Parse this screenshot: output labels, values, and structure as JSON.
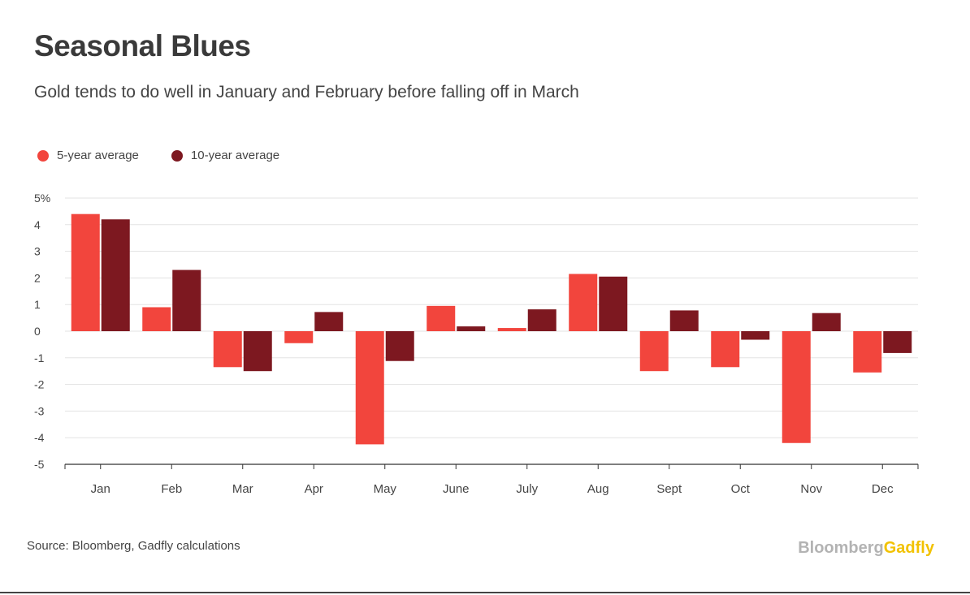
{
  "chart_data": {
    "type": "bar",
    "title": "Seasonal Blues",
    "subtitle": "Gold tends to do well in January and February before falling off in March",
    "xlabel": "",
    "ylabel": "",
    "ylim": [
      -5,
      5
    ],
    "yticks": [
      "5%",
      "4",
      "3",
      "2",
      "1",
      "0",
      "-1",
      "-2",
      "-3",
      "-4",
      "-5"
    ],
    "ytick_values": [
      5,
      4,
      3,
      2,
      1,
      0,
      -1,
      -2,
      -3,
      -4,
      -5
    ],
    "categories": [
      "Jan",
      "Feb",
      "Mar",
      "Apr",
      "May",
      "June",
      "July",
      "Aug",
      "Sept",
      "Oct",
      "Nov",
      "Dec"
    ],
    "series": [
      {
        "name": "5-year average",
        "color": "#f2453d",
        "values": [
          4.4,
          0.9,
          -1.35,
          -0.45,
          -4.25,
          0.95,
          0.12,
          2.15,
          -1.5,
          -1.35,
          -4.2,
          -1.55
        ]
      },
      {
        "name": "10-year average",
        "color": "#7d1820",
        "values": [
          4.2,
          2.3,
          -1.5,
          0.72,
          -1.12,
          0.18,
          0.82,
          2.05,
          0.78,
          -0.32,
          0.68,
          -0.82
        ]
      }
    ],
    "grid": true,
    "legend_position": "top-left"
  },
  "footer": {
    "source": "Source: Bloomberg, Gadfly calculations",
    "brand_part1": "Bloomberg",
    "brand_part2": "Gadfly",
    "brand_color1": "#b3b3b3",
    "brand_color2": "#f2c200"
  }
}
